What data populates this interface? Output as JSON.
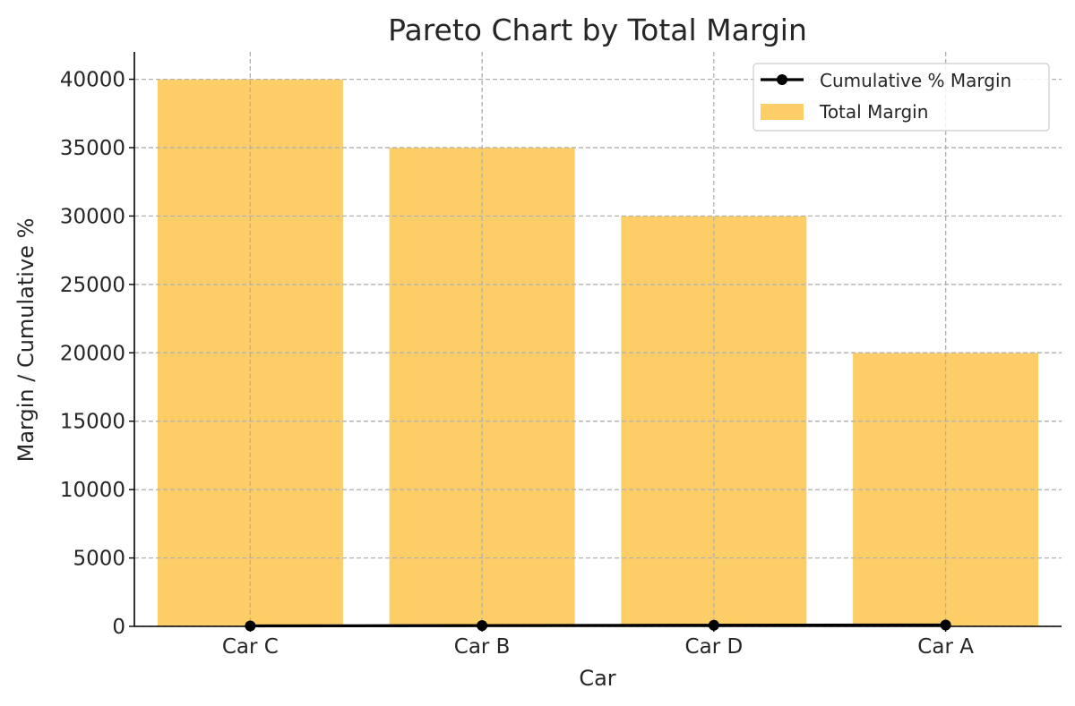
{
  "chart_data": {
    "type": "bar",
    "title": "Pareto Chart by Total Margin",
    "xlabel": "Car",
    "ylabel": "Margin / Cumulative %",
    "categories": [
      "Car C",
      "Car B",
      "Car D",
      "Car A"
    ],
    "series": [
      {
        "name": "Total Margin",
        "type": "bar",
        "values": [
          40000,
          35000,
          30000,
          20000
        ],
        "color": "#fdcd67"
      },
      {
        "name": "Cumulative % Margin",
        "type": "line",
        "values": [
          32,
          60,
          84,
          100
        ],
        "color": "#000000",
        "marker": "circle"
      }
    ],
    "ylim": [
      0,
      42000
    ],
    "yticks": [
      0,
      5000,
      10000,
      15000,
      20000,
      25000,
      30000,
      35000,
      40000
    ],
    "grid": true,
    "legend": "top-right"
  }
}
